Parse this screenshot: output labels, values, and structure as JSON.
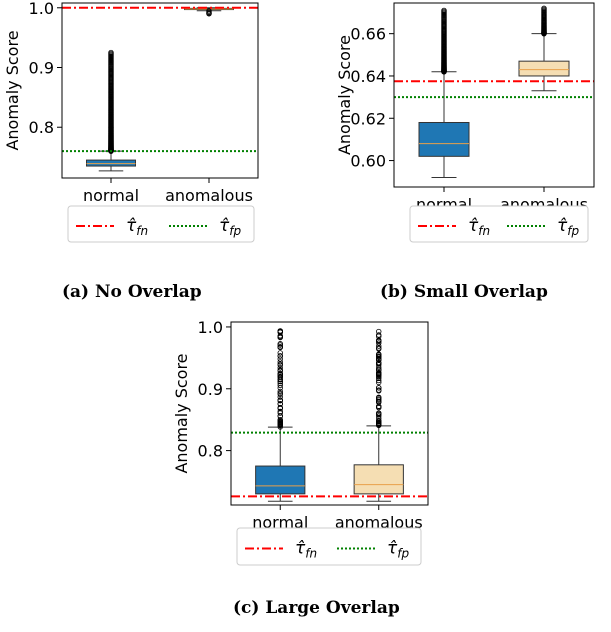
{
  "chart_data": [
    {
      "type": "box",
      "panel": "(a)",
      "caption": "(a) No Overlap",
      "ylabel": "Anomaly Score",
      "ylim": [
        0.715,
        1.008
      ],
      "yticks": [
        0.8,
        0.9,
        1.0
      ],
      "ytick_labels": [
        "0.8",
        "0.9",
        "1.0"
      ],
      "categories": [
        "normal",
        "anomalous"
      ],
      "boxes": [
        {
          "name": "normal",
          "color": "#1f77b4",
          "whisker_low": 0.727,
          "q1": 0.735,
          "median": 0.739,
          "q3": 0.745,
          "whisker_high": 0.76,
          "outlier_range": [
            0.76,
            0.925
          ]
        },
        {
          "name": "anomalous",
          "color": "#f5deb3",
          "whisker_low": 0.995,
          "q1": 0.997,
          "median": 0.998,
          "q3": 0.999,
          "whisker_high": 1.0,
          "outlier_range": [
            0.99,
            0.995
          ]
        }
      ],
      "thresholds": [
        {
          "name": "τ̂fn",
          "value": 1.0,
          "color": "#ff0000",
          "style": "dashdot"
        },
        {
          "name": "τ̂fp",
          "value": 0.76,
          "color": "#008000",
          "style": "dotted"
        }
      ],
      "legend": {
        "placement": "bottom",
        "items": [
          "τ̂fn",
          "τ̂fp"
        ]
      }
    },
    {
      "type": "box",
      "panel": "(b)",
      "caption": "(b) Small Overlap",
      "ylabel": "Anomaly Score",
      "ylim": [
        0.5875,
        0.6745
      ],
      "yticks": [
        0.6,
        0.62,
        0.64,
        0.66
      ],
      "ytick_labels": [
        "0.60",
        "0.62",
        "0.64",
        "0.66"
      ],
      "categories": [
        "normal",
        "anomalous"
      ],
      "boxes": [
        {
          "name": "normal",
          "color": "#1f77b4",
          "whisker_low": 0.592,
          "q1": 0.602,
          "median": 0.608,
          "q3": 0.618,
          "whisker_high": 0.642,
          "outlier_range": [
            0.642,
            0.671
          ]
        },
        {
          "name": "anomalous",
          "color": "#f5deb3",
          "whisker_low": 0.633,
          "q1": 0.64,
          "median": 0.643,
          "q3": 0.647,
          "whisker_high": 0.66,
          "outlier_range": [
            0.66,
            0.672
          ]
        }
      ],
      "thresholds": [
        {
          "name": "τ̂fn",
          "value": 0.6375,
          "color": "#ff0000",
          "style": "dashdot"
        },
        {
          "name": "τ̂fp",
          "value": 0.63,
          "color": "#008000",
          "style": "dotted"
        }
      ],
      "legend": {
        "placement": "bottom",
        "items": [
          "τ̂fn",
          "τ̂fp"
        ]
      }
    },
    {
      "type": "box",
      "panel": "(c)",
      "caption": "(c) Large Overlap",
      "ylabel": "Anomaly Score",
      "ylim": [
        0.712,
        1.008
      ],
      "yticks": [
        0.8,
        0.9,
        1.0
      ],
      "ytick_labels": [
        "0.8",
        "0.9",
        "1.0"
      ],
      "categories": [
        "normal",
        "anomalous"
      ],
      "boxes": [
        {
          "name": "normal",
          "color": "#1f77b4",
          "whisker_low": 0.718,
          "q1": 0.73,
          "median": 0.743,
          "q3": 0.775,
          "whisker_high": 0.838,
          "outlier_range": [
            0.838,
            1.0
          ]
        },
        {
          "name": "anomalous",
          "color": "#f5deb3",
          "whisker_low": 0.718,
          "q1": 0.73,
          "median": 0.745,
          "q3": 0.777,
          "whisker_high": 0.84,
          "outlier_range": [
            0.84,
            1.0
          ]
        }
      ],
      "thresholds": [
        {
          "name": "τ̂fn",
          "value": 0.726,
          "color": "#ff0000",
          "style": "dashdot"
        },
        {
          "name": "τ̂fp",
          "value": 0.829,
          "color": "#008000",
          "style": "dotted"
        }
      ],
      "legend": {
        "placement": "bottom",
        "items": [
          "τ̂fn",
          "τ̂fp"
        ]
      }
    }
  ]
}
